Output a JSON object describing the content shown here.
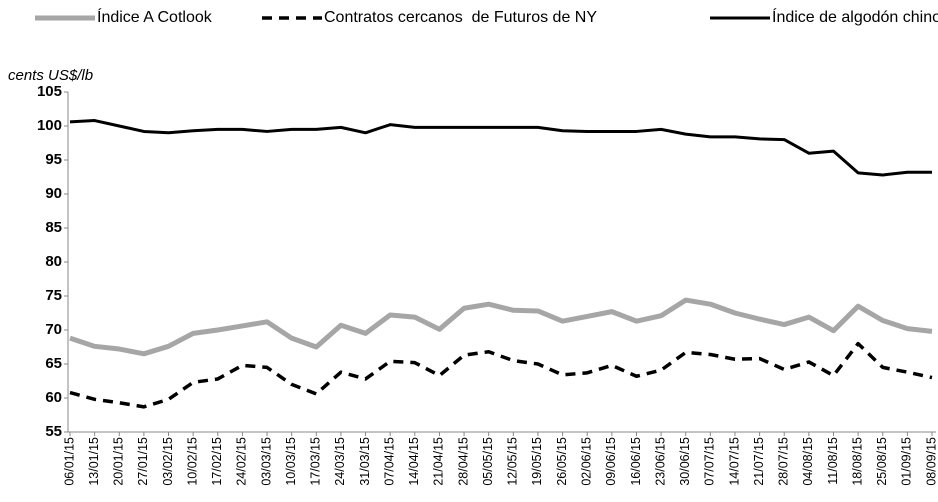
{
  "chart_data": {
    "type": "line",
    "y_label": "cents US$/lb",
    "categories": [
      "06/01/15",
      "13/01/15",
      "20/01/15",
      "27/01/15",
      "03/02/15",
      "10/02/15",
      "17/02/15",
      "24/02/15",
      "03/03/15",
      "10/03/15",
      "17/03/15",
      "24/03/15",
      "31/03/15",
      "07/04/15",
      "14/04/15",
      "21/04/15",
      "28/04/15",
      "05/05/15",
      "12/05/15",
      "19/05/15",
      "26/05/15",
      "02/06/15",
      "09/06/15",
      "16/06/15",
      "23/06/15",
      "30/06/15",
      "07/07/15",
      "14/07/15",
      "21/07/15",
      "28/07/15",
      "04/08/15",
      "11/08/15",
      "18/08/15",
      "25/08/15",
      "01/09/15",
      "08/09/15"
    ],
    "series": [
      {
        "name": "Índice A Cotlook",
        "color": "#a6a6a6",
        "line_style": "solid",
        "width": 5,
        "values": [
          68.8,
          67.6,
          67.2,
          66.5,
          67.6,
          69.5,
          70.0,
          70.6,
          71.2,
          68.8,
          67.5,
          70.7,
          69.5,
          72.2,
          71.9,
          70.1,
          73.2,
          73.8,
          72.9,
          72.8,
          71.3,
          72.0,
          72.7,
          71.3,
          72.1,
          74.4,
          73.8,
          72.5,
          71.6,
          70.8,
          71.9,
          69.9,
          73.5,
          71.4,
          70.2,
          69.8
        ]
      },
      {
        "name": "Contratos cercanos  de Futuros de NY",
        "color": "#000000",
        "line_style": "dashed",
        "width": 3.5,
        "values": [
          60.8,
          59.8,
          59.3,
          58.7,
          59.8,
          62.3,
          62.8,
          64.8,
          64.5,
          62.0,
          60.6,
          63.8,
          62.8,
          65.4,
          65.2,
          63.3,
          66.3,
          66.8,
          65.5,
          65.0,
          63.4,
          63.7,
          64.8,
          63.2,
          64.1,
          66.7,
          66.4,
          65.7,
          65.8,
          64.2,
          65.3,
          63.3,
          68.0,
          64.5,
          63.8,
          63.0
        ]
      },
      {
        "name": "Índice de algodón chino",
        "color": "#000000",
        "line_style": "solid",
        "width": 3,
        "values": [
          100.6,
          100.8,
          100.0,
          99.2,
          99.0,
          99.3,
          99.5,
          99.5,
          99.2,
          99.5,
          99.5,
          99.8,
          99.0,
          100.2,
          99.8,
          99.8,
          99.8,
          99.8,
          99.8,
          99.8,
          99.3,
          99.2,
          99.2,
          99.2,
          99.5,
          98.8,
          98.4,
          98.4,
          98.1,
          98.0,
          96.0,
          96.3,
          93.1,
          92.8,
          93.2,
          93.2
        ]
      }
    ],
    "ylim": [
      55,
      105
    ],
    "yticks": [
      55,
      60,
      65,
      70,
      75,
      80,
      85,
      90,
      95,
      100,
      105
    ],
    "grid": false,
    "legend": "top"
  }
}
